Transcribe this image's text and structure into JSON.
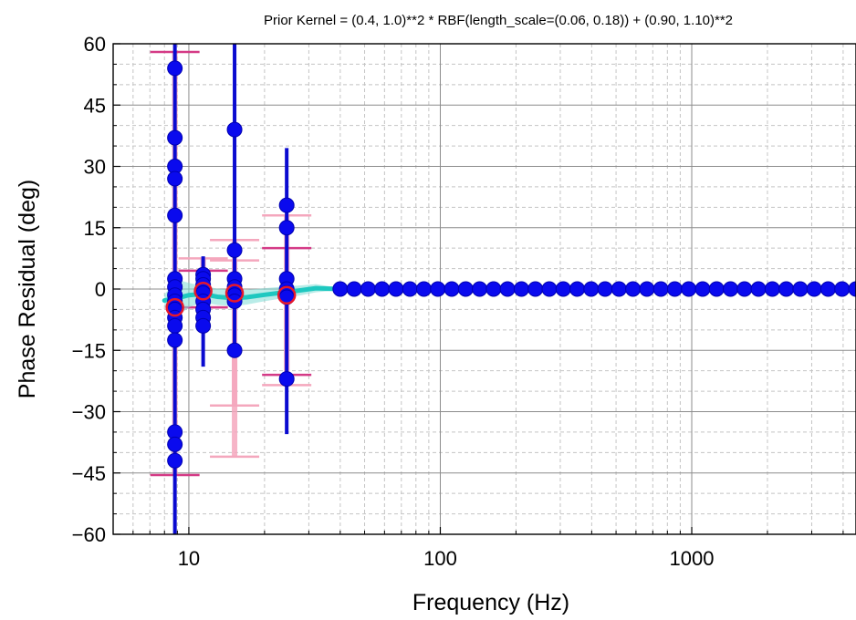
{
  "chart_data": {
    "type": "scatter",
    "title": "Prior Kernel = (0.4, 1.0)**2 * RBF(length_scale=(0.06, 0.18)) + (0.90, 1.10)**2",
    "xlabel": "Frequency (Hz)",
    "ylabel": "Phase Residual (deg)",
    "xscale": "log",
    "xlim": [
      5,
      4500
    ],
    "ylim": [
      -60,
      60
    ],
    "grid": true,
    "x_ticks": [
      10,
      100,
      1000
    ],
    "x_tick_labels": [
      "10",
      "100",
      "1000"
    ],
    "y_ticks": [
      -60,
      -45,
      -30,
      -15,
      0,
      15,
      30,
      45,
      60
    ],
    "y_tick_labels": [
      "−60",
      "−45",
      "−30",
      "−15",
      "0",
      "15",
      "30",
      "45",
      "60"
    ],
    "colors": {
      "measurement": "#0a0aee",
      "measurement_errorbar": "#0a0ad0",
      "binned_marker": "#e8182a",
      "binned_errorbar": "#f4a7bd",
      "binned_errorbar_dark": "#d43a86",
      "gpr_fit": "#1ec8c0",
      "gpr_band": "#7fdcd6"
    },
    "measurements": [
      {
        "f": 8.8,
        "phase": [
          54,
          37,
          30,
          27,
          18,
          2.5,
          0.5,
          -1.5,
          -3,
          -5,
          -7,
          -9,
          -12.5,
          -35,
          -38,
          -42
        ],
        "err_low": -60,
        "err_high": 60
      },
      {
        "f": 11.4,
        "phase": [
          3.5,
          2.5,
          1,
          -1,
          -3,
          -5,
          -7,
          -9
        ],
        "err_low": -19,
        "err_high": 8
      },
      {
        "f": 15.2,
        "phase": [
          39,
          9.5,
          2.5,
          0.5,
          -1.5,
          -3,
          -15
        ],
        "err_low": -16,
        "err_high": 60
      },
      {
        "f": 24.5,
        "phase": [
          20.5,
          15,
          2.5,
          0,
          -1,
          -2,
          -22
        ],
        "err_low": -35.5,
        "err_high": 34.5
      }
    ],
    "binned_points": [
      {
        "f": 8.8,
        "phase": -4.5,
        "err_low": -45.5,
        "err_high": 58,
        "cap_color": "dark"
      },
      {
        "f": 11.4,
        "phase": -0.5,
        "err_low": -4.5,
        "err_high": 7.5,
        "cap_color": "light"
      },
      {
        "f": 15.2,
        "phase": -1,
        "err_low": -41,
        "err_high": 12,
        "cap_color": "light"
      },
      {
        "f": 15.2,
        "phase": -1,
        "err_low": -28.5,
        "err_high": 7,
        "cap_color": "light"
      },
      {
        "f": 24.5,
        "phase": -1.5,
        "err_low": -23.5,
        "err_high": 18,
        "cap_color": "light"
      },
      {
        "f": 24.5,
        "phase": -1.5,
        "err_low": -21,
        "err_high": 10,
        "cap_color": "dark"
      },
      {
        "f": 11.4,
        "phase": -0.5,
        "err_low": -4.5,
        "err_high": 4.5,
        "cap_color": "dark"
      }
    ],
    "flat_series": {
      "f_start": 40,
      "f_end": 4500,
      "count": 38,
      "phase": 0
    },
    "gpr_fit": {
      "f": [
        8,
        9,
        10,
        11,
        12,
        13,
        15,
        17,
        20,
        24,
        28,
        32,
        36,
        40
      ],
      "mean": [
        -2.8,
        -2.2,
        -1.5,
        -1.3,
        -1.5,
        -1.9,
        -2.2,
        -2.0,
        -1.4,
        -0.8,
        -0.3,
        0.2,
        0.1,
        0
      ],
      "band": [
        1.5,
        4.5,
        3.0,
        2.2,
        2.0,
        2.0,
        2.0,
        1.8,
        1.6,
        1.4,
        1.2,
        1.0,
        0.6,
        0.3
      ]
    }
  }
}
